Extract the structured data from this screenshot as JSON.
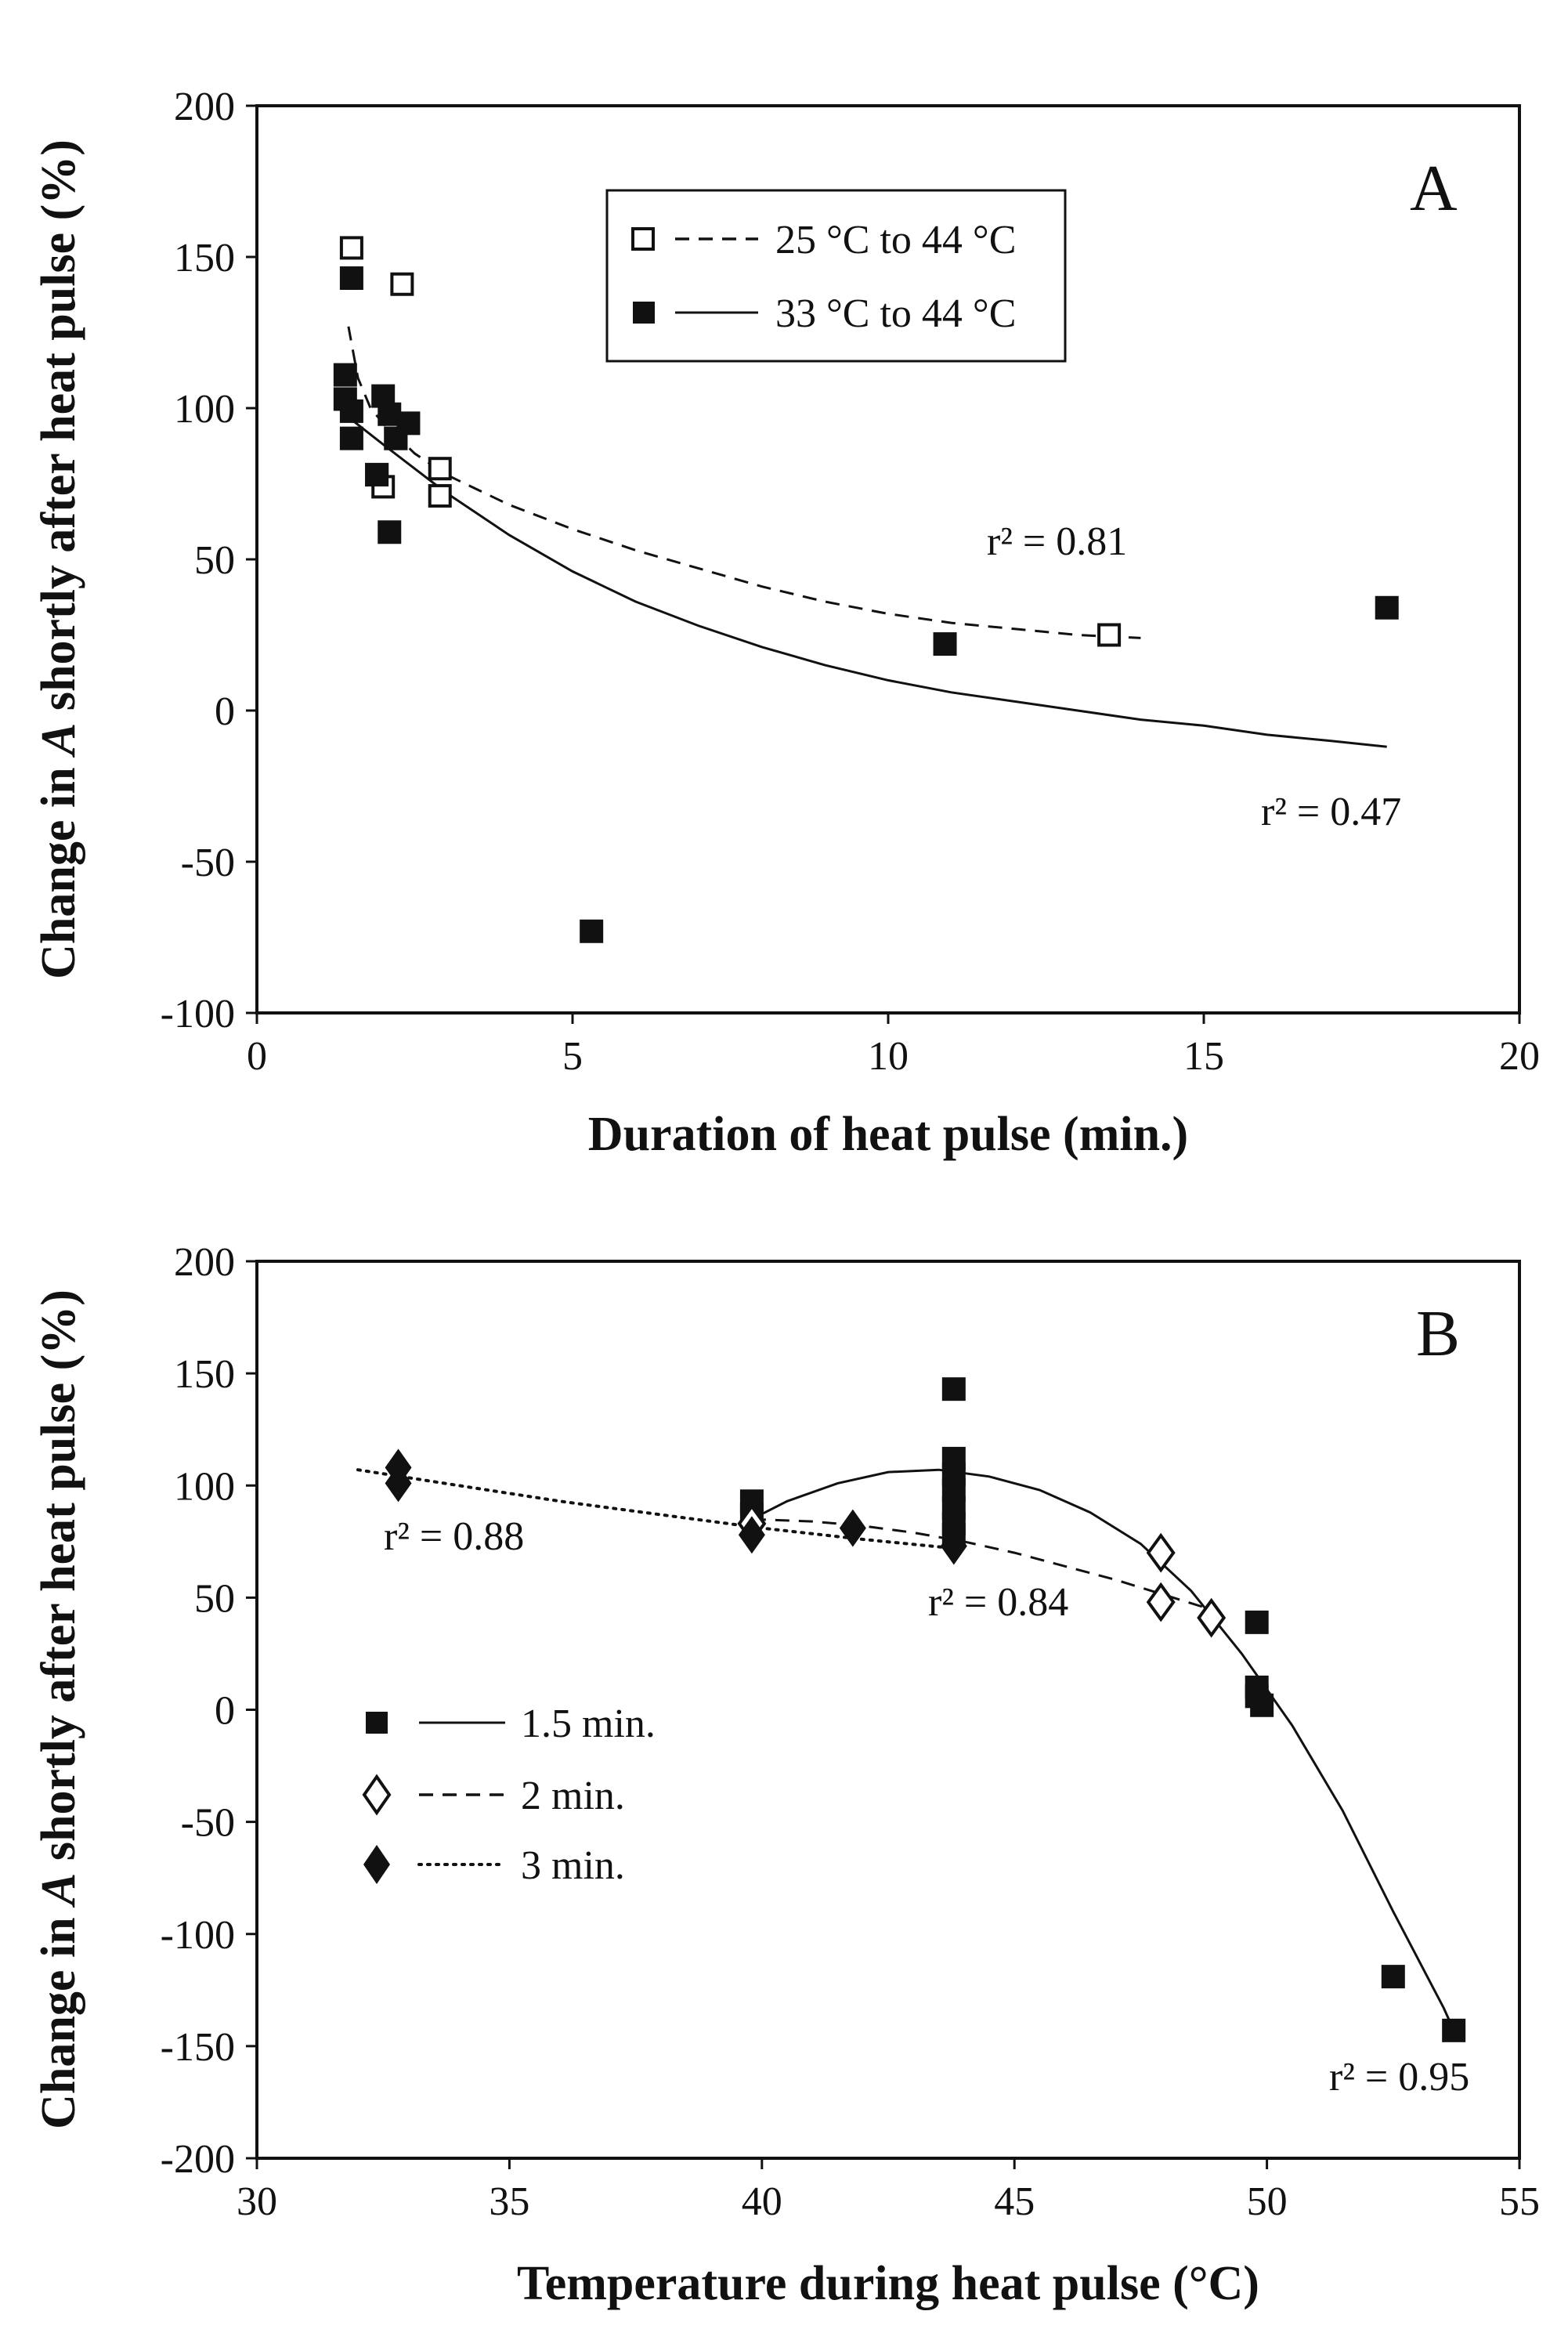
{
  "chart_data": [
    {
      "type": "scatter",
      "panel_label": "A",
      "xlabel": "Duration of heat pulse (min.)",
      "ylabel_parts": [
        "Change in ",
        "A",
        " shortly after heat pulse (%)"
      ],
      "xlim": [
        0,
        20
      ],
      "ylim": [
        -100,
        200
      ],
      "xticks": [
        0,
        5,
        10,
        15,
        20
      ],
      "yticks": [
        -100,
        -50,
        0,
        50,
        100,
        150,
        200
      ],
      "grid": false,
      "legend_position": "top-center",
      "series": [
        {
          "name": "25 °C to 44 °C",
          "marker": "open-square",
          "line": "dashed",
          "points": [
            [
              1.5,
              153
            ],
            [
              2.3,
              141
            ],
            [
              1.9,
              78
            ],
            [
              2.0,
              74
            ],
            [
              2.2,
              90
            ],
            [
              2.9,
              80
            ],
            [
              2.9,
              71
            ],
            [
              13.5,
              25
            ]
          ],
          "fit": [
            [
              1.45,
              127
            ],
            [
              1.6,
              110
            ],
            [
              1.8,
              100
            ],
            [
              2.0,
              95
            ],
            [
              2.5,
              85
            ],
            [
              3,
              78
            ],
            [
              4,
              68
            ],
            [
              5,
              60
            ],
            [
              6,
              53
            ],
            [
              7,
              47
            ],
            [
              8,
              41
            ],
            [
              9,
              36
            ],
            [
              10,
              32
            ],
            [
              11,
              29
            ],
            [
              12,
              27
            ],
            [
              13,
              25
            ],
            [
              14,
              24
            ]
          ],
          "r2_label": "r² = 0.81"
        },
        {
          "name": "33 °C to 44 °C",
          "marker": "filled-square",
          "line": "solid",
          "points": [
            [
              1.4,
              111
            ],
            [
              1.4,
              103
            ],
            [
              1.5,
              90
            ],
            [
              1.5,
              99
            ],
            [
              1.5,
              143
            ],
            [
              1.9,
              78
            ],
            [
              2.0,
              104
            ],
            [
              2.1,
              98
            ],
            [
              2.2,
              90
            ],
            [
              2.4,
              95
            ],
            [
              2.1,
              59
            ],
            [
              5.3,
              -73
            ],
            [
              10.9,
              22
            ],
            [
              17.9,
              34
            ]
          ],
          "fit": [
            [
              1.45,
              97
            ],
            [
              2,
              88
            ],
            [
              3,
              72
            ],
            [
              4,
              58
            ],
            [
              5,
              46
            ],
            [
              6,
              36
            ],
            [
              7,
              28
            ],
            [
              8,
              21
            ],
            [
              9,
              15
            ],
            [
              10,
              10
            ],
            [
              11,
              6
            ],
            [
              12,
              3
            ],
            [
              13,
              0
            ],
            [
              14,
              -3
            ],
            [
              15,
              -5
            ],
            [
              16,
              -8
            ],
            [
              17,
              -10
            ],
            [
              17.9,
              -12
            ]
          ],
          "r2_label": "r² = 0.47"
        }
      ]
    },
    {
      "type": "scatter",
      "panel_label": "B",
      "xlabel": "Temperature during heat pulse (°C)",
      "ylabel_parts": [
        "Change in ",
        "A",
        " shortly after heat pulse (%)"
      ],
      "xlim": [
        30,
        55
      ],
      "ylim": [
        -200,
        200
      ],
      "xticks": [
        30,
        35,
        40,
        45,
        50,
        55
      ],
      "yticks": [
        -200,
        -150,
        -100,
        -50,
        0,
        50,
        100,
        150,
        200
      ],
      "grid": false,
      "legend_position": "middle-left",
      "series": [
        {
          "name": "1.5 min.",
          "marker": "filled-square",
          "line": "solid",
          "points": [
            [
              39.8,
              93
            ],
            [
              39.8,
              87
            ],
            [
              43.8,
              143
            ],
            [
              43.8,
              112
            ],
            [
              43.8,
              105
            ],
            [
              43.8,
              98
            ],
            [
              43.8,
              90
            ],
            [
              43.8,
              83
            ],
            [
              43.8,
              78
            ],
            [
              49.8,
              39
            ],
            [
              49.8,
              10
            ],
            [
              49.8,
              6
            ],
            [
              49.9,
              2
            ],
            [
              52.5,
              -119
            ],
            [
              53.7,
              -143
            ]
          ],
          "fit": [
            [
              39.8,
              85
            ],
            [
              40.5,
              93
            ],
            [
              41.5,
              101
            ],
            [
              42.5,
              106
            ],
            [
              43.5,
              107
            ],
            [
              44.5,
              104
            ],
            [
              45.5,
              98
            ],
            [
              46.5,
              88
            ],
            [
              47.5,
              74
            ],
            [
              48.5,
              53
            ],
            [
              49.5,
              25
            ],
            [
              50.5,
              -7
            ],
            [
              51.5,
              -45
            ],
            [
              52.5,
              -90
            ],
            [
              53.5,
              -133
            ],
            [
              53.7,
              -143
            ]
          ],
          "r2_label": "r² = 0.95"
        },
        {
          "name": "2 min.",
          "marker": "open-diamond",
          "line": "dashed",
          "points": [
            [
              39.8,
              83
            ],
            [
              47.9,
              70
            ],
            [
              47.9,
              48
            ],
            [
              48.9,
              41
            ]
          ],
          "fit": [
            [
              39.8,
              85
            ],
            [
              41,
              84
            ],
            [
              42,
              82
            ],
            [
              43,
              79
            ],
            [
              44,
              75
            ],
            [
              45,
              70
            ],
            [
              46,
              64
            ],
            [
              47,
              58
            ],
            [
              48,
              51
            ],
            [
              49,
              44
            ]
          ],
          "r2_label": "r² = 0.84"
        },
        {
          "name": "3 min.",
          "marker": "filled-diamond",
          "line": "dotted",
          "points": [
            [
              32.8,
              108
            ],
            [
              32.8,
              101
            ],
            [
              39.8,
              78
            ],
            [
              41.8,
              81
            ],
            [
              43.8,
              73
            ]
          ],
          "fit": [
            [
              32,
              107
            ],
            [
              34,
              100
            ],
            [
              36,
              93
            ],
            [
              38,
              87
            ],
            [
              40,
              81
            ],
            [
              42,
              76
            ],
            [
              43.8,
              72
            ]
          ],
          "r2_label": "r² = 0.88"
        }
      ]
    }
  ]
}
